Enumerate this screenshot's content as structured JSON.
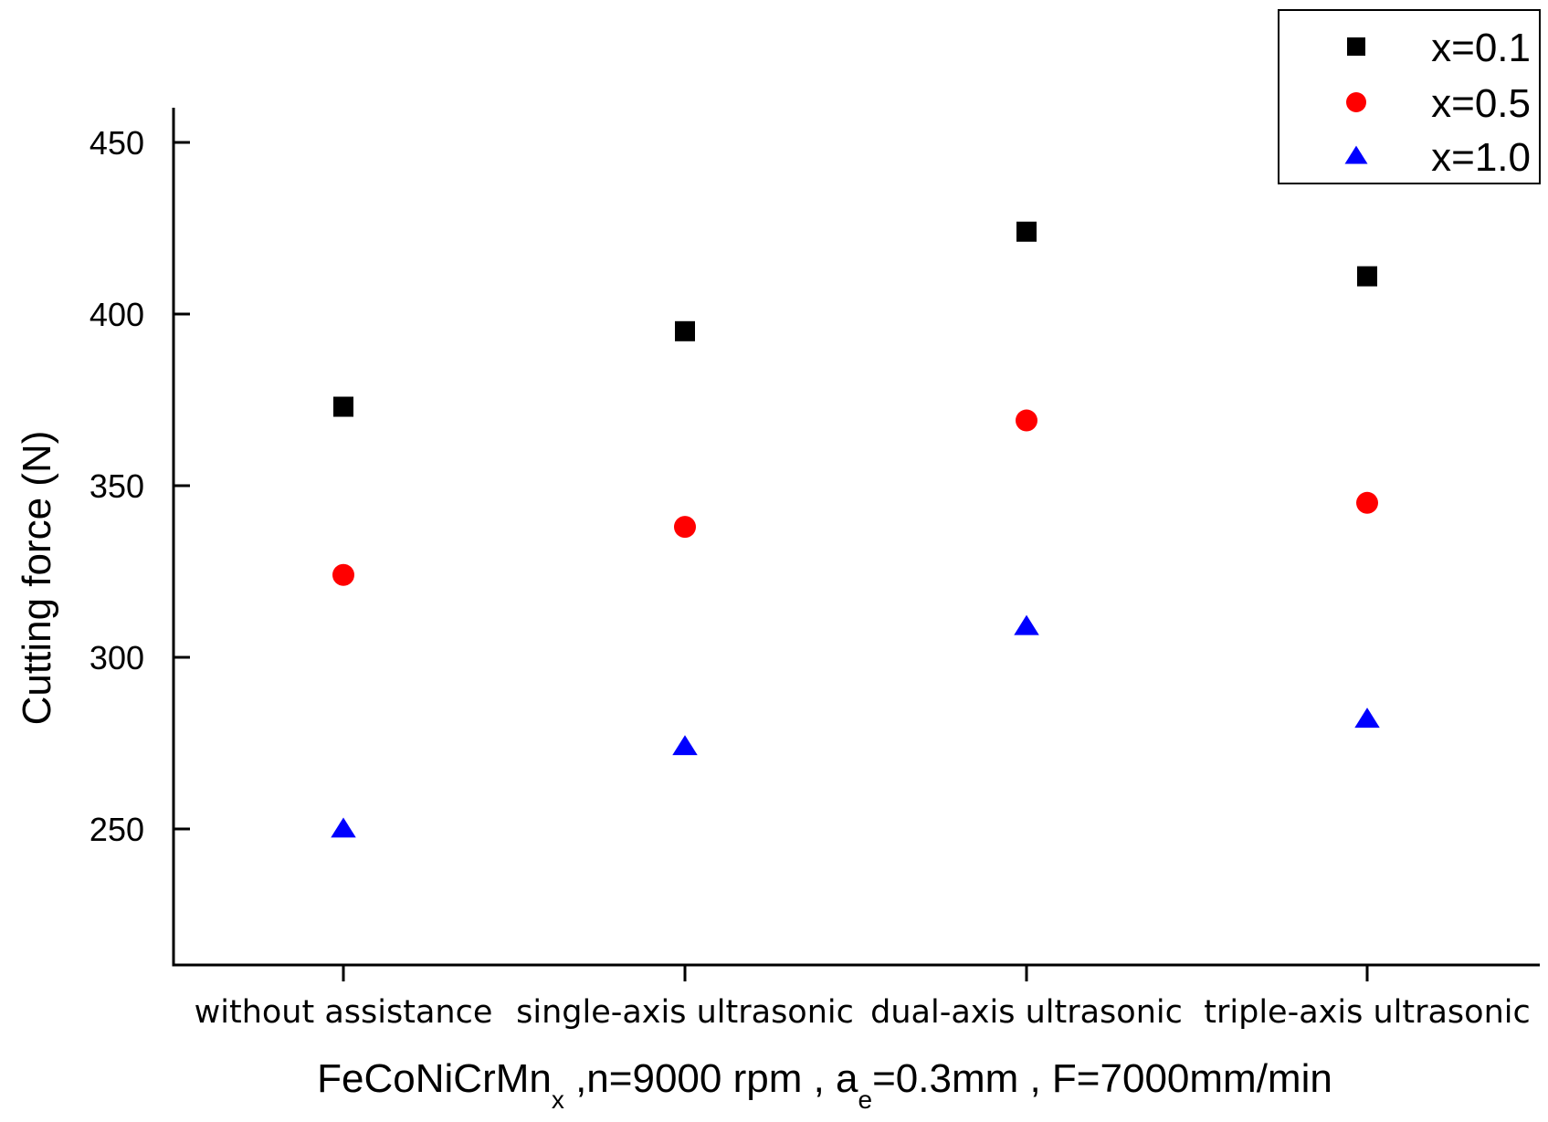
{
  "chart_data": {
    "type": "scatter",
    "categories": [
      "without assistance",
      "single-axis ultrasonic",
      "dual-axis ultrasonic",
      "triple-axis ultrasonic"
    ],
    "series": [
      {
        "name": "x=0.1",
        "marker": "square",
        "color": "#000000",
        "values": [
          373,
          395,
          424,
          411
        ]
      },
      {
        "name": "x=0.5",
        "marker": "circle",
        "color": "#ff0000",
        "values": [
          324,
          338,
          369,
          345
        ]
      },
      {
        "name": "x=1.0",
        "marker": "triangle",
        "color": "#0000ff",
        "values": [
          250,
          274,
          309,
          282
        ]
      }
    ],
    "ylabel": "Cutting force (N)",
    "xlabel": {
      "base": "FeCoNiCrMn",
      "sub1": "x",
      "mid": " ,n=9000 rpm , a",
      "sub2": "e",
      "end": "=0.3mm , F=7000mm/min"
    },
    "ylim": [
      210,
      460
    ],
    "yticks": [
      250,
      300,
      350,
      400,
      450
    ],
    "ytick_labels": [
      "250",
      "300",
      "350",
      "400",
      "450"
    ],
    "grid": false,
    "legend": "top-right"
  }
}
